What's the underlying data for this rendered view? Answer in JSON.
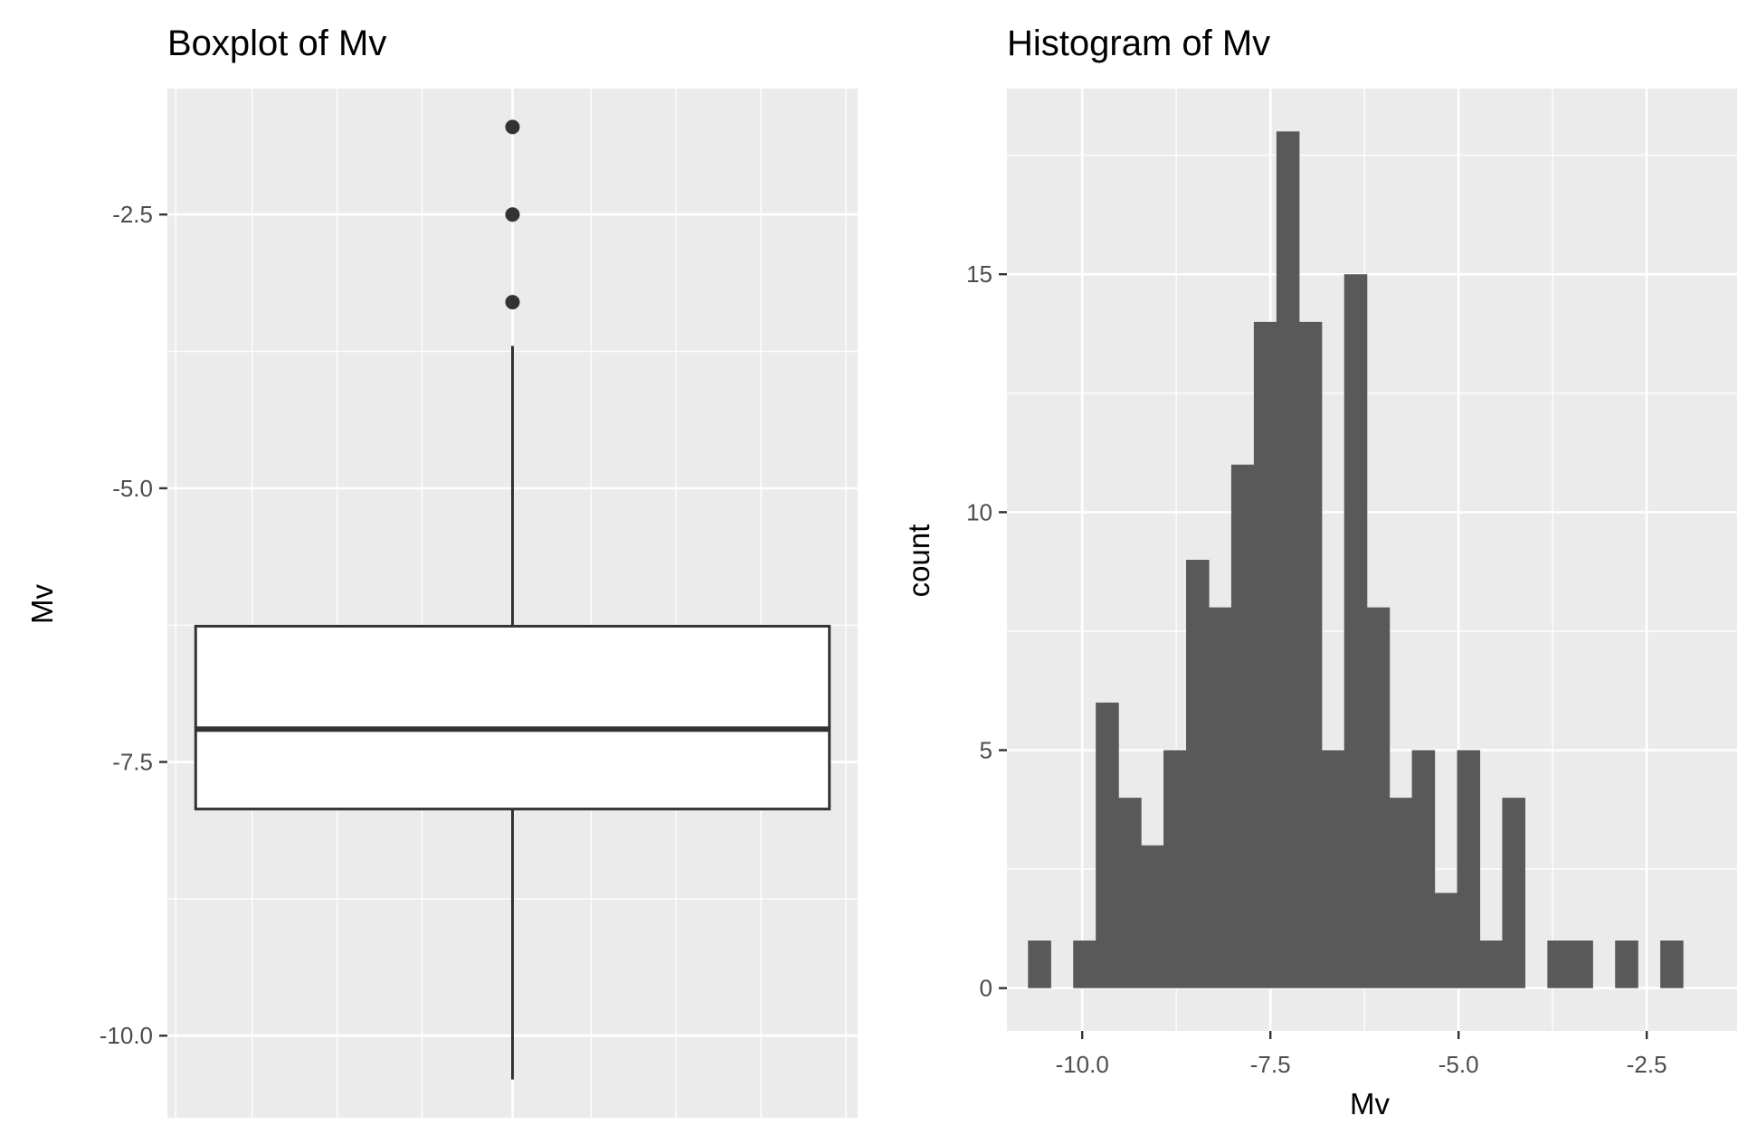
{
  "chart_data": [
    {
      "type": "boxplot",
      "title": "Boxplot of Mv",
      "xlabel": "",
      "ylabel": "Mv",
      "ylim": [
        -10.75,
        -1.35
      ],
      "yticks": [
        -10.0,
        -7.5,
        -5.0,
        -2.5
      ],
      "ytick_labels": [
        "-10.0",
        "-7.5",
        "-5.0",
        "-2.5"
      ],
      "grid": true,
      "box": {
        "q1": -7.93,
        "median": -7.2,
        "q3": -6.26,
        "whisker_low": -10.4,
        "whisker_high": -3.7
      },
      "outliers": [
        -1.7,
        -2.5,
        -3.3
      ],
      "colors": {
        "panel": "#ebebeb",
        "grid": "#ffffff",
        "box_fill": "#ffffff",
        "line": "#333333"
      }
    },
    {
      "type": "bar",
      "subtype": "histogram",
      "title": "Histogram of Mv",
      "xlabel": "Mv",
      "ylabel": "count",
      "xlim": [
        -11.0,
        -1.3
      ],
      "ylim": [
        -0.9,
        18.9
      ],
      "xticks": [
        -10.0,
        -7.5,
        -5.0,
        -2.5
      ],
      "xtick_labels": [
        "-10.0",
        "-7.5",
        "-5.0",
        "-2.5"
      ],
      "yticks": [
        0,
        5,
        10,
        15
      ],
      "ytick_labels": [
        "0",
        "5",
        "10",
        "15"
      ],
      "grid": true,
      "bin_start": -10.72,
      "bin_width": 0.3,
      "values": [
        1,
        0,
        1,
        6,
        4,
        3,
        5,
        9,
        8,
        11,
        14,
        18,
        14,
        5,
        15,
        8,
        4,
        5,
        2,
        5,
        1,
        4,
        0,
        1,
        1,
        0,
        1,
        0,
        1
      ],
      "colors": {
        "panel": "#ebebeb",
        "grid": "#ffffff",
        "bar": "#595959"
      }
    }
  ]
}
